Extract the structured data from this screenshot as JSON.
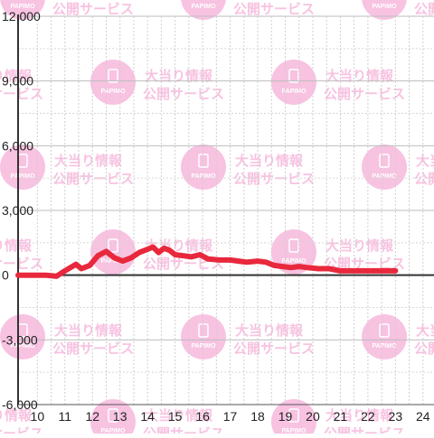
{
  "watermark": {
    "line1": "大当り情報",
    "line2": "公開サービス",
    "logo_text": "PAPIMO",
    "color": "#f7b8dc"
  },
  "chart_data": {
    "type": "line",
    "title": "",
    "xlabel": "",
    "ylabel": "",
    "xlim": [
      9.3,
      24.4
    ],
    "ylim": [
      -6000,
      12000
    ],
    "x_ticks": [
      "10",
      "11",
      "12",
      "13",
      "14",
      "15",
      "16",
      "17",
      "18",
      "19",
      "20",
      "21",
      "22",
      "23",
      "24"
    ],
    "y_ticks": [
      "12,000",
      "9,000",
      "6,000",
      "3,000",
      "0",
      "-3,000",
      "-6,000"
    ],
    "grid": true,
    "line_color": "#e8283c",
    "series": [
      {
        "x": [
          9.3,
          10.0,
          10.3,
          10.7,
          11.0,
          11.4,
          11.6,
          11.9,
          12.2,
          12.5,
          12.8,
          13.1,
          13.4,
          13.7,
          14.0,
          14.2,
          14.4,
          14.6,
          14.8,
          15.0,
          15.3,
          15.6,
          15.9,
          16.2,
          16.6,
          17.0,
          17.3,
          17.6,
          18.0,
          18.3,
          18.6,
          18.9,
          19.2,
          19.5,
          19.8,
          20.2,
          20.6,
          21.0,
          21.5,
          22.0,
          22.5,
          23.0
        ],
        "y": [
          0,
          0,
          0,
          -50,
          200,
          500,
          300,
          450,
          900,
          1100,
          800,
          650,
          800,
          1050,
          1200,
          1300,
          1050,
          1250,
          1150,
          950,
          900,
          850,
          950,
          750,
          700,
          700,
          650,
          600,
          650,
          600,
          450,
          400,
          350,
          400,
          350,
          300,
          300,
          200,
          200,
          200,
          200,
          200
        ]
      }
    ]
  }
}
